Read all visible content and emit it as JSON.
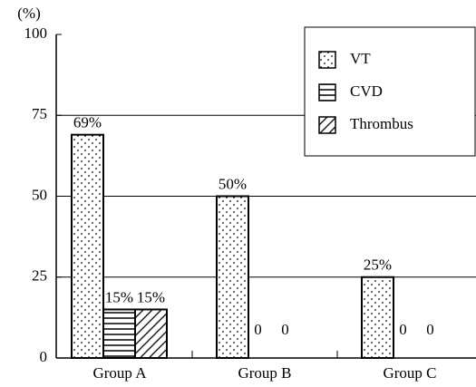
{
  "chart_data": {
    "type": "bar",
    "y_label": "(%)",
    "categories": [
      "Group A",
      "Group B",
      "Group C"
    ],
    "series": [
      {
        "name": "VT",
        "color": "#000000",
        "pattern": "dots",
        "values": [
          69,
          50,
          25
        ],
        "value_labels": [
          "69%",
          "50%",
          "25%"
        ]
      },
      {
        "name": "CVD",
        "color": "#000000",
        "pattern": "horizontal",
        "values": [
          15,
          0,
          0
        ],
        "value_labels": [
          "15%",
          "0",
          "0"
        ]
      },
      {
        "name": "Thrombus",
        "color": "#000000",
        "pattern": "diagonal",
        "values": [
          15,
          0,
          0
        ],
        "value_labels": [
          "15%",
          "0",
          "0"
        ]
      }
    ],
    "ylim": [
      0,
      100
    ],
    "yticks": [
      0,
      25,
      50,
      75,
      100
    ],
    "grid": true,
    "legend": "upper right"
  }
}
